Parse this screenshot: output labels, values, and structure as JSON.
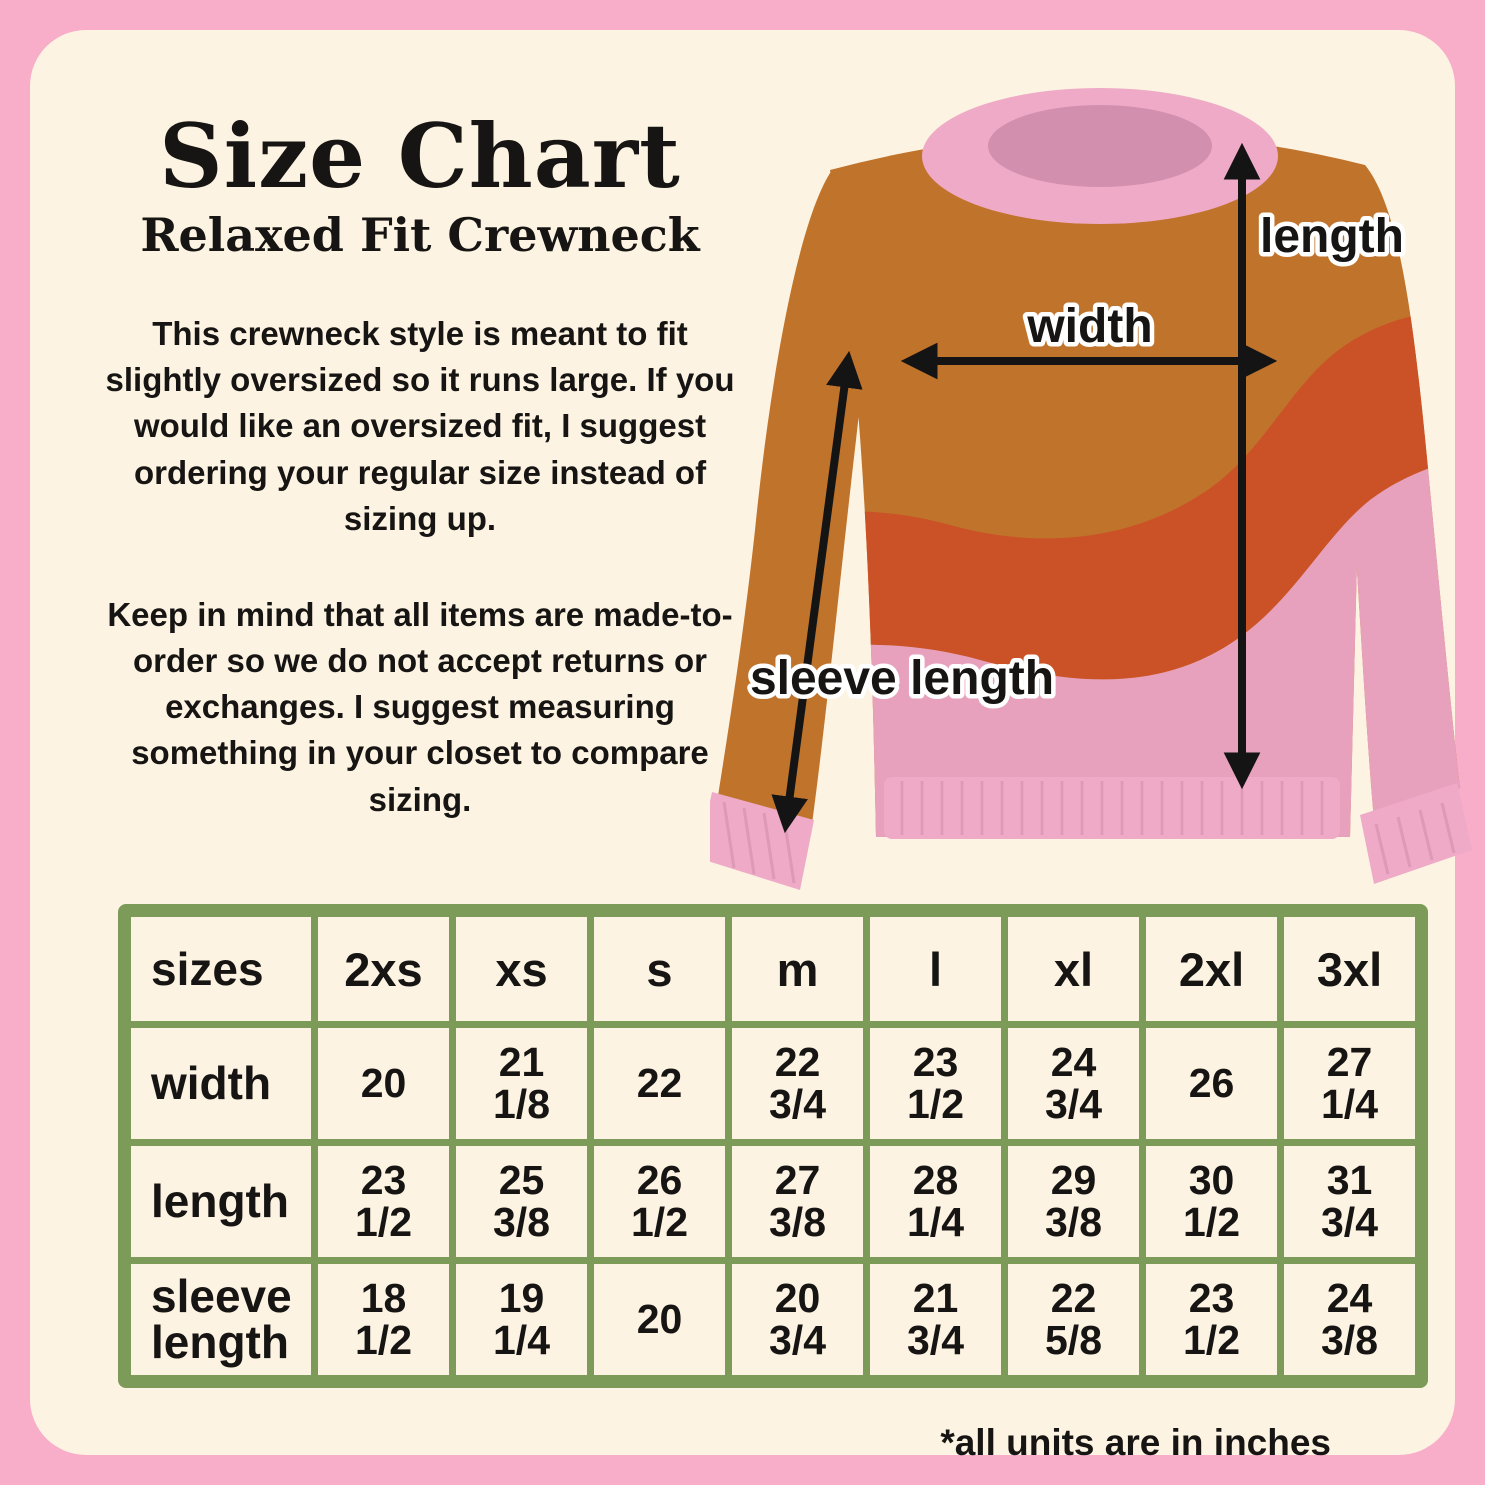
{
  "page": {
    "title": "Size Chart",
    "subtitle": "Relaxed Fit Crewneck",
    "paragraph1": "This crewneck style is meant to fit slightly oversized so it runs large. If you would like an oversized fit, I suggest ordering your regular size instead of sizing up.",
    "paragraph2": "Keep in mind that all items are made-to-order so we do not accept returns or exchanges. I suggest measuring something in your closet to compare sizing.",
    "footnote": "*all units are in inches"
  },
  "diagram": {
    "labels": {
      "length": "length",
      "width": "width",
      "sleeve_length": "sleeve length"
    }
  },
  "size_table": {
    "header": [
      "sizes",
      "2xs",
      "xs",
      "s",
      "m",
      "l",
      "xl",
      "2xl",
      "3xl"
    ],
    "rows": [
      {
        "label": "width",
        "values": [
          "20",
          "21 1/8",
          "22",
          "22 3/4",
          "23 1/2",
          "24 3/4",
          "26",
          "27 1/4"
        ]
      },
      {
        "label": "length",
        "values": [
          "23 1/2",
          "25 3/8",
          "26 1/2",
          "27 3/8",
          "28 1/4",
          "29 3/8",
          "30 1/2",
          "31 3/4"
        ]
      },
      {
        "label": "sleeve length",
        "values": [
          "18 1/2",
          "19 1/4",
          "20",
          "20 3/4",
          "21 3/4",
          "22 5/8",
          "23 1/2",
          "24 3/8"
        ]
      }
    ]
  },
  "colors": {
    "border_pink": "#f8adc9",
    "background_cream": "#fdf3e2",
    "table_green": "#7c9b58",
    "ink": "#171513",
    "arrow_black": "#141414",
    "sweater_orange": "#c0732b",
    "sweater_wave_orange": "#cb5126",
    "sweater_pink": "#e8a1bc",
    "sweater_trim_pink": "#eeaac6",
    "collar_opening_pink": "#d38fae",
    "rib_line_pink": "#d68fb0"
  }
}
